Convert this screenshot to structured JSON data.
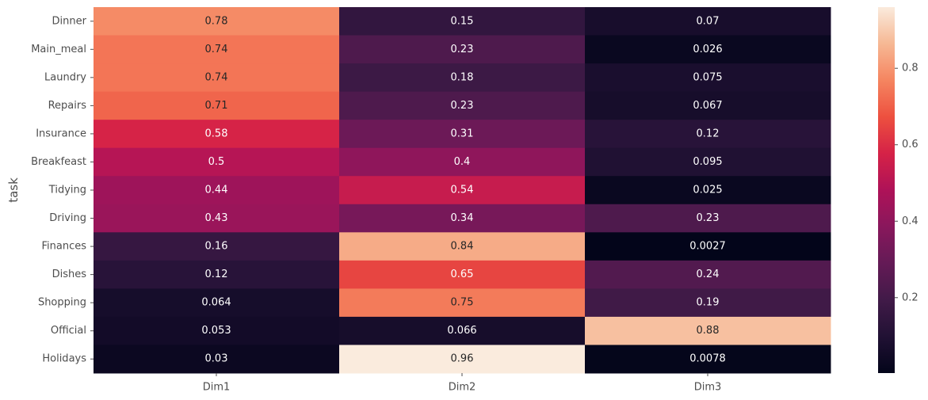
{
  "chart_data": {
    "type": "heatmap",
    "title": "",
    "xlabel": "",
    "ylabel": "task",
    "columns": [
      "Dim1",
      "Dim2",
      "Dim3"
    ],
    "rows": [
      "Dinner",
      "Main_meal",
      "Laundry",
      "Repairs",
      "Insurance",
      "Breakfeast",
      "Tidying",
      "Driving",
      "Finances",
      "Dishes",
      "Shopping",
      "Official",
      "Holidays"
    ],
    "values": [
      [
        0.78,
        0.15,
        0.07
      ],
      [
        0.74,
        0.23,
        0.026
      ],
      [
        0.74,
        0.18,
        0.075
      ],
      [
        0.71,
        0.23,
        0.067
      ],
      [
        0.58,
        0.31,
        0.12
      ],
      [
        0.5,
        0.4,
        0.095
      ],
      [
        0.44,
        0.54,
        0.025
      ],
      [
        0.43,
        0.34,
        0.23
      ],
      [
        0.16,
        0.84,
        0.0027
      ],
      [
        0.12,
        0.65,
        0.24
      ],
      [
        0.064,
        0.75,
        0.19
      ],
      [
        0.053,
        0.066,
        0.88
      ],
      [
        0.03,
        0.96,
        0.0078
      ]
    ],
    "colormap": "rocket",
    "vmin": 0.0027,
    "vmax": 0.96,
    "colorbar_ticks": [
      "0.2",
      "0.4",
      "0.6",
      "0.8"
    ],
    "colorbar_tick_values": [
      0.2,
      0.4,
      0.6,
      0.8
    ],
    "annotations": true,
    "grid": false,
    "legend": "colorbar-right"
  }
}
